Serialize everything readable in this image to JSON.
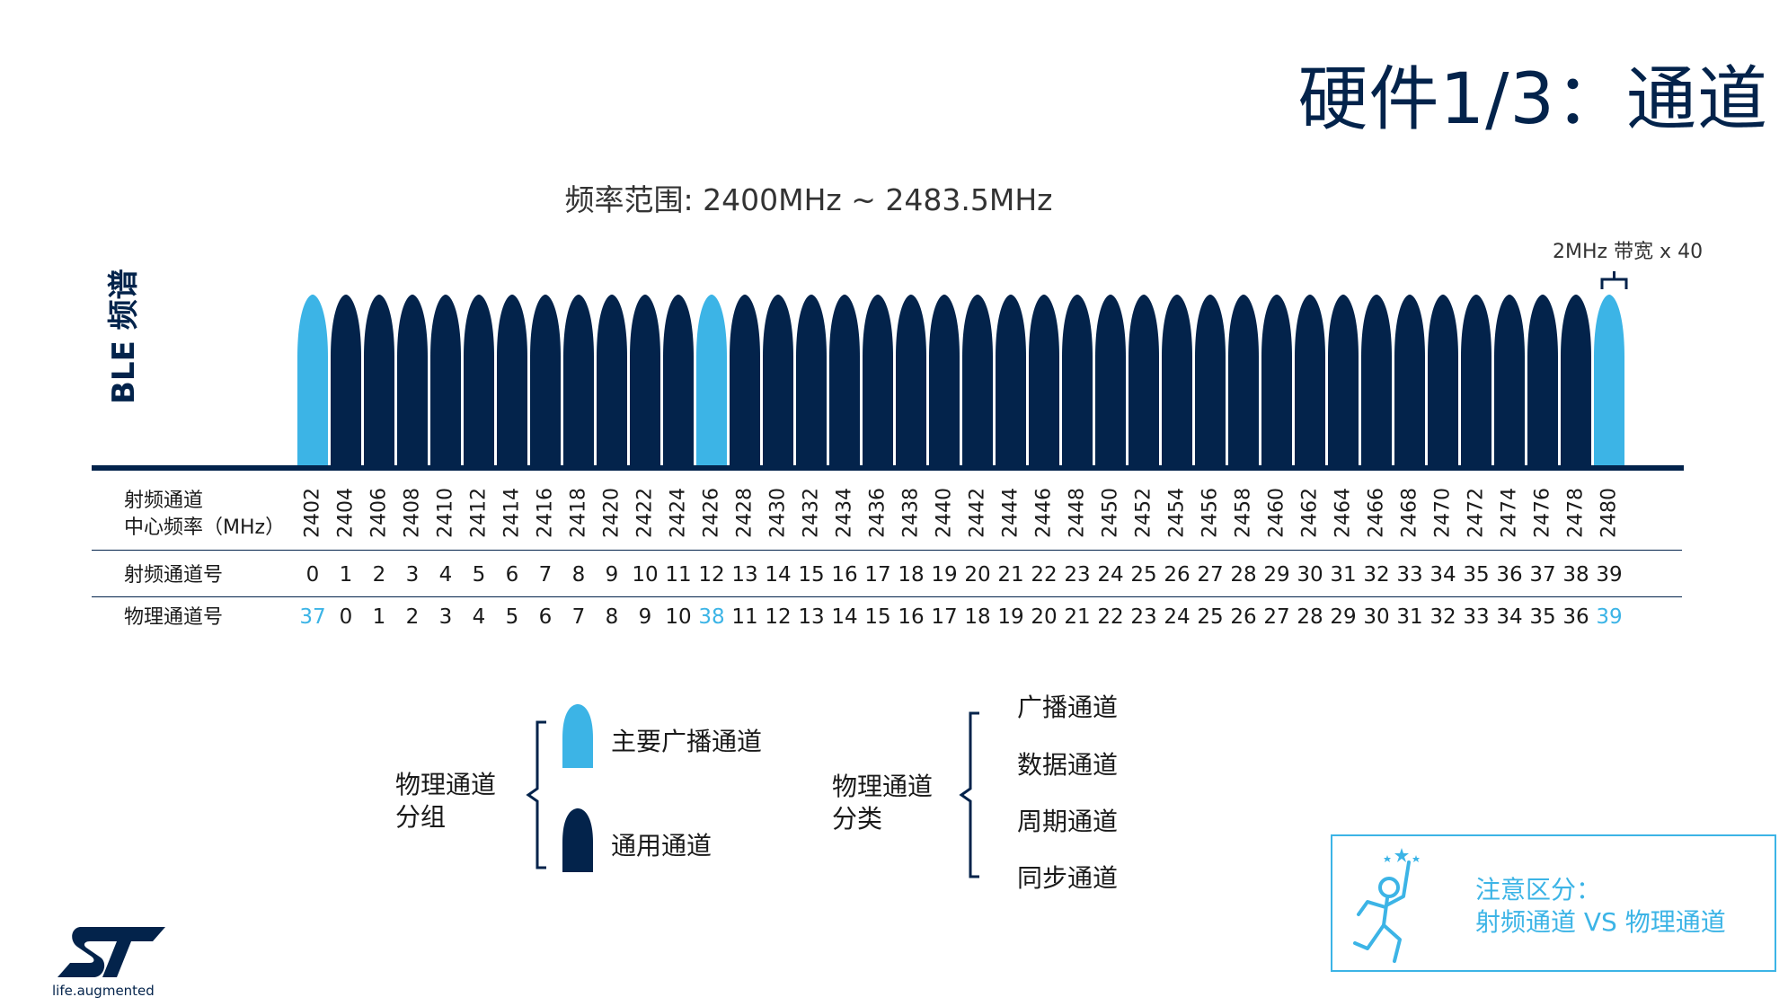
{
  "title": "硬件1/3：通道",
  "frequency_range": "频率范围: 2400MHz ~ 2483.5MHz",
  "bandwidth_note": "2MHz 带宽 x 40",
  "spectrum_label": "BLE 频谱",
  "rows": {
    "center_freq_label_line1": "射频通道",
    "center_freq_label_line2": "中心频率（MHz）",
    "rf_channel_label": "射频通道号",
    "physical_channel_label": "物理通道号"
  },
  "center_freqs": [
    "2402",
    "2404",
    "2406",
    "2408",
    "2410",
    "2412",
    "2414",
    "2416",
    "2418",
    "2420",
    "2422",
    "2424",
    "2426",
    "2428",
    "2430",
    "2432",
    "2434",
    "2436",
    "2438",
    "2440",
    "2442",
    "2444",
    "2446",
    "2448",
    "2450",
    "2452",
    "2454",
    "2456",
    "2458",
    "2460",
    "2462",
    "2464",
    "2466",
    "2468",
    "2470",
    "2472",
    "2474",
    "2476",
    "2478",
    "2480"
  ],
  "rf_channels": [
    "0",
    "1",
    "2",
    "3",
    "4",
    "5",
    "6",
    "7",
    "8",
    "9",
    "10",
    "11",
    "12",
    "13",
    "14",
    "15",
    "16",
    "17",
    "18",
    "19",
    "20",
    "21",
    "22",
    "23",
    "24",
    "25",
    "26",
    "27",
    "28",
    "29",
    "30",
    "31",
    "32",
    "33",
    "34",
    "35",
    "36",
    "37",
    "38",
    "39"
  ],
  "physical_channels": [
    "37",
    "0",
    "1",
    "2",
    "3",
    "4",
    "5",
    "6",
    "7",
    "8",
    "9",
    "10",
    "38",
    "11",
    "12",
    "13",
    "14",
    "15",
    "16",
    "17",
    "18",
    "19",
    "20",
    "21",
    "22",
    "23",
    "24",
    "25",
    "26",
    "27",
    "28",
    "29",
    "30",
    "31",
    "32",
    "33",
    "34",
    "35",
    "36",
    "39"
  ],
  "advertising_rf_indices": [
    0,
    12,
    39
  ],
  "grouping": {
    "label_line1": "物理通道",
    "label_line2": "分组",
    "primary_adv": "主要广播通道",
    "general": "通用通道"
  },
  "classification": {
    "label_line1": "物理通道",
    "label_line2": "分类",
    "items": [
      "广播通道",
      "数据通道",
      "周期通道",
      "同步通道"
    ]
  },
  "note": {
    "line1": "注意区分：",
    "line2": "射频通道 VS 物理通道"
  },
  "logo_tagline": "life.augmented",
  "colors": {
    "dark_navy": "#03234b",
    "light_blue": "#3cb4e6"
  }
}
